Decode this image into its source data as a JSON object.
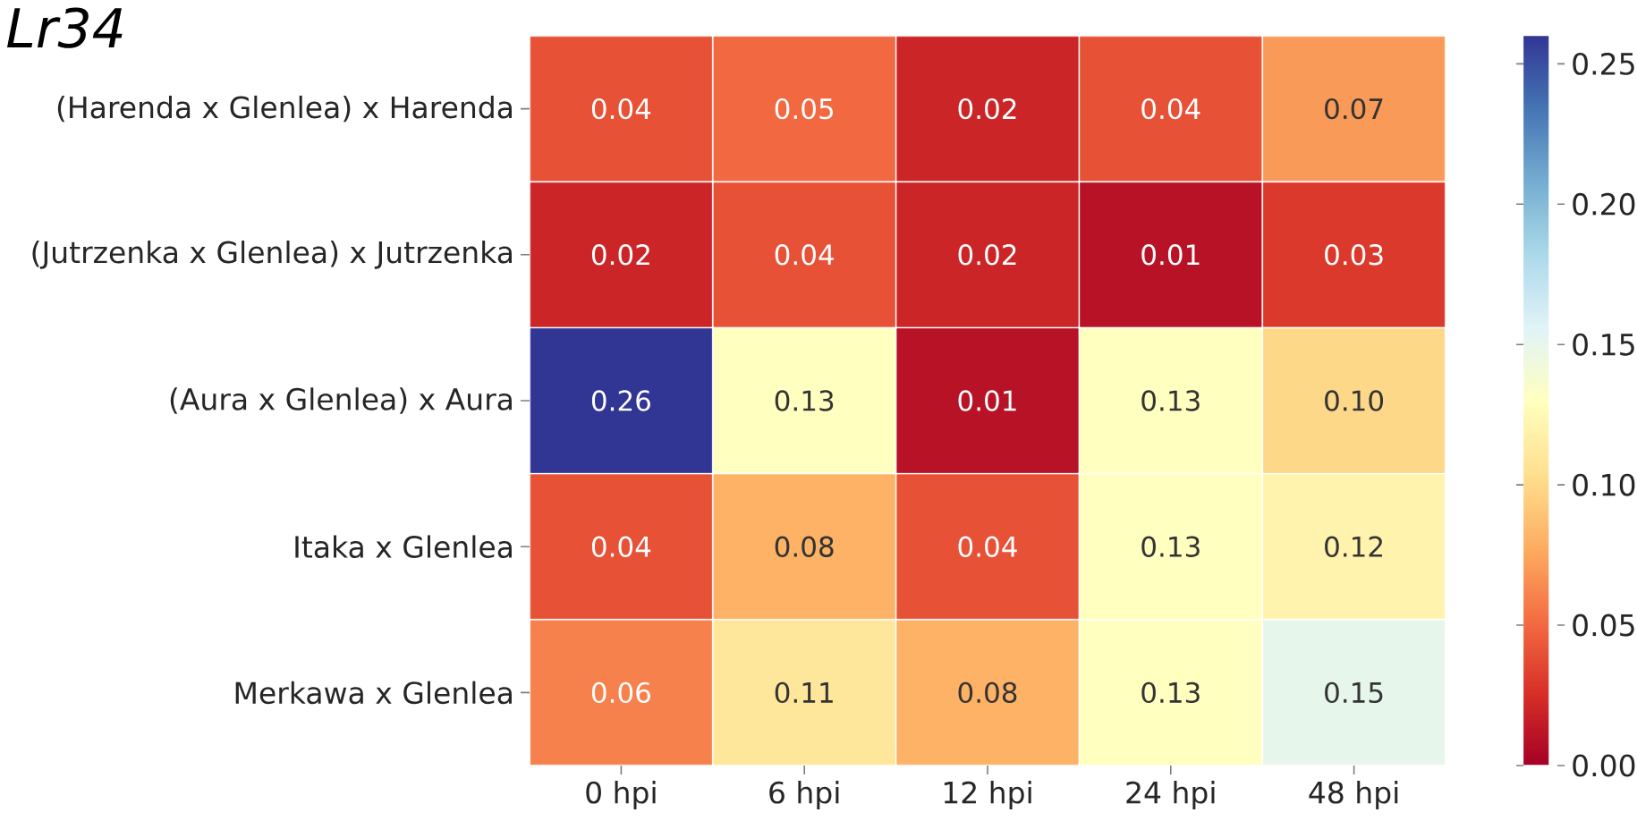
{
  "chart_data": {
    "type": "heatmap",
    "title": "Lr34",
    "categories": [
      "0 hpi",
      "6 hpi",
      "12 hpi",
      "24 hpi",
      "48 hpi"
    ],
    "y_categories": [
      "(Harenda x Glenlea) x Harenda",
      "(Jutrzenka x Glenlea) x Jutrzenka",
      "(Aura x Glenlea) x Aura",
      "Itaka x Glenlea",
      "Merkawa x Glenlea"
    ],
    "cells": [
      [
        0.04,
        0.05,
        0.02,
        0.04,
        0.07
      ],
      [
        0.02,
        0.04,
        0.02,
        0.01,
        0.03
      ],
      [
        0.26,
        0.13,
        0.01,
        0.13,
        0.1
      ],
      [
        0.04,
        0.08,
        0.04,
        0.13,
        0.12
      ],
      [
        0.06,
        0.11,
        0.08,
        0.13,
        0.15
      ]
    ],
    "cell_labels": [
      [
        "0.04",
        "0.05",
        "0.02",
        "0.04",
        "0.07"
      ],
      [
        "0.02",
        "0.04",
        "0.02",
        "0.01",
        "0.03"
      ],
      [
        "0.26",
        "0.13",
        "0.01",
        "0.13",
        "0.10"
      ],
      [
        "0.04",
        "0.08",
        "0.04",
        "0.13",
        "0.12"
      ],
      [
        "0.06",
        "0.11",
        "0.08",
        "0.13",
        "0.15"
      ]
    ],
    "clim": [
      0,
      0.26
    ],
    "cticks": [
      {
        "value": 0,
        "label": "0.00"
      },
      0.05,
      {
        "value": 0.1,
        "label": "0.10"
      },
      0.15,
      {
        "value": 0.2,
        "label": "0.20"
      },
      0.25
    ]
  }
}
